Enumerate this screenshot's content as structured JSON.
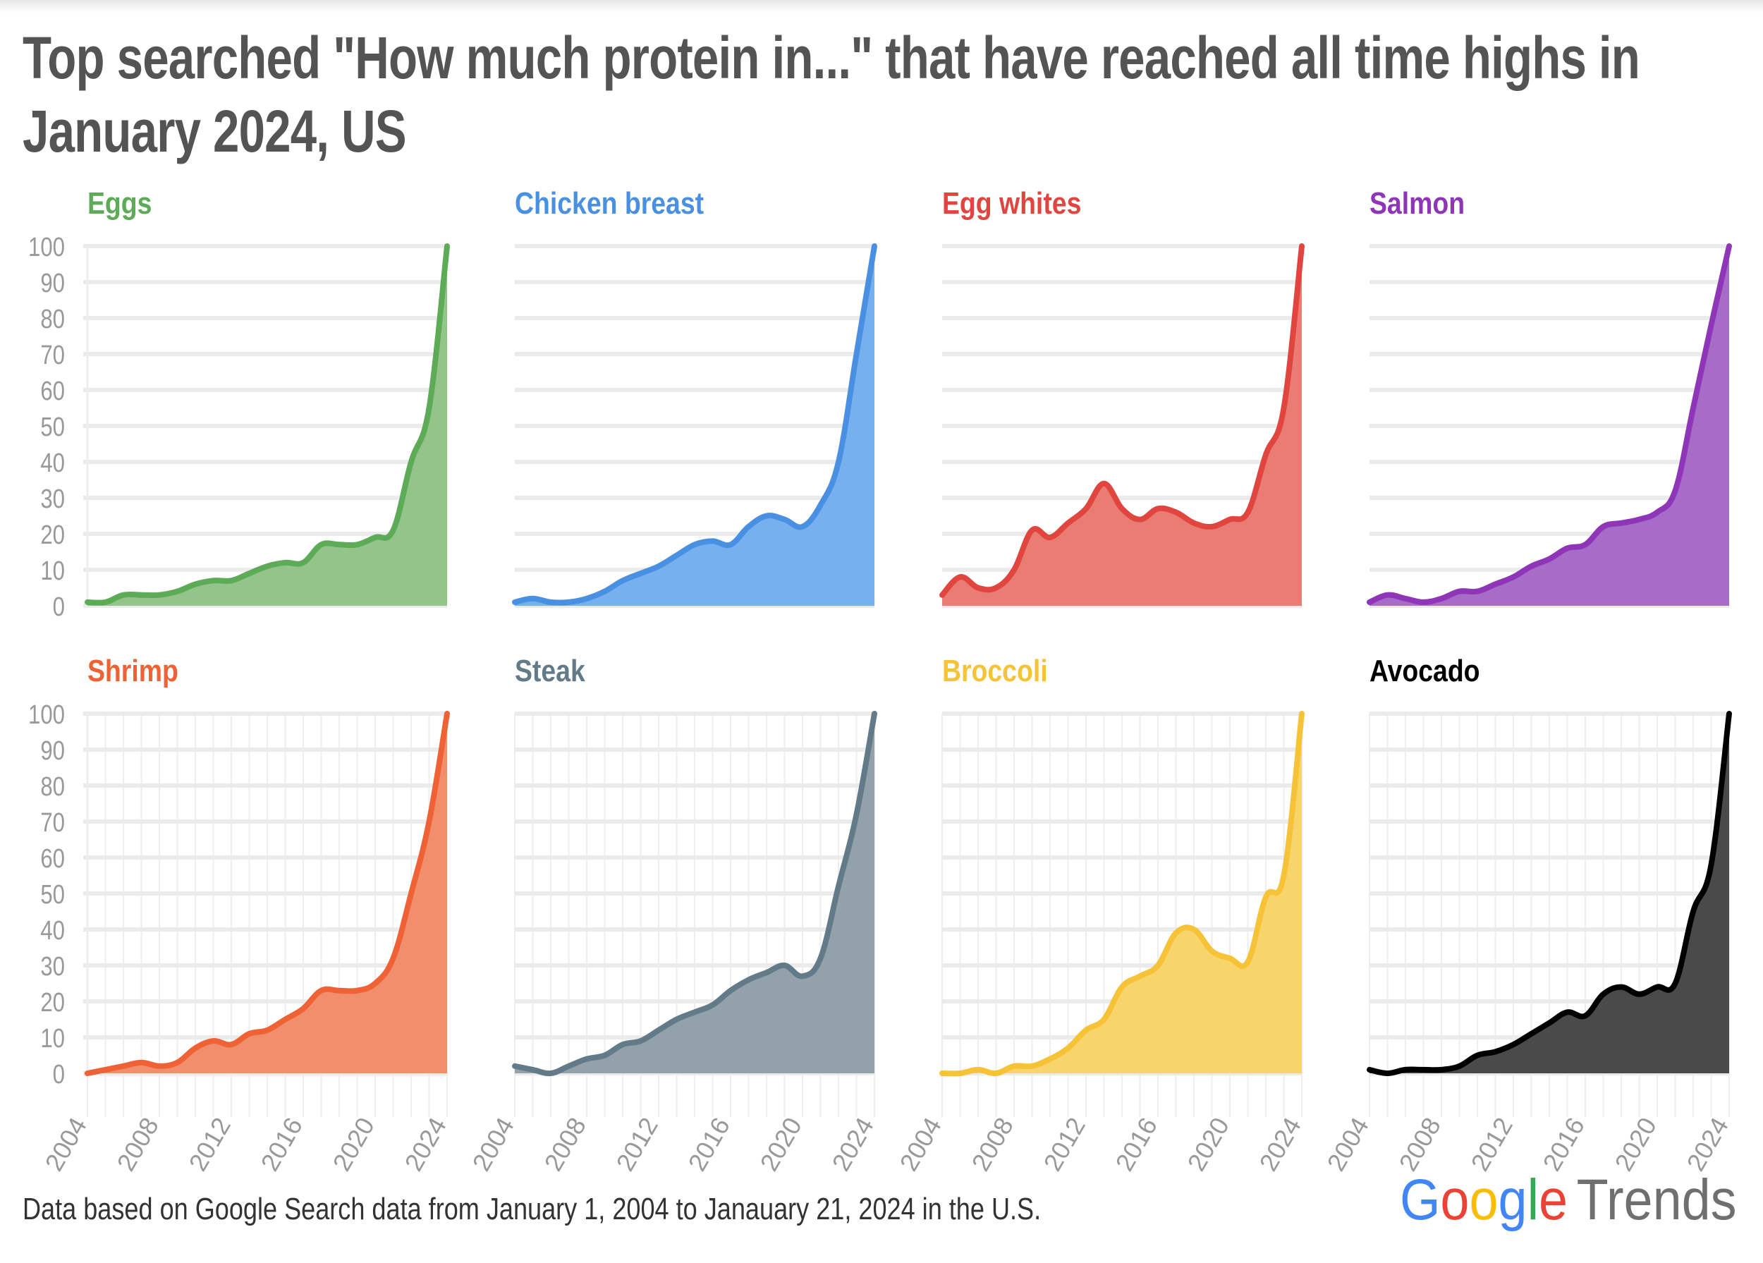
{
  "title": "Top searched \"How much protein in...\" that have reached all time highs in January 2024, US",
  "footer": "Data based on Google Search data from January 1, 2004 to Janauary 21, 2024 in the U.S.",
  "logo": {
    "google": "Google",
    "trends": "Trends"
  },
  "chart_data": [
    {
      "type": "area",
      "title": "Eggs",
      "color": "#5DAA57",
      "fill": "#93C48A",
      "x": [
        2004,
        2005,
        2006,
        2007,
        2008,
        2009,
        2010,
        2011,
        2012,
        2013,
        2014,
        2015,
        2016,
        2017,
        2018,
        2019,
        2020,
        2021,
        2022,
        2023,
        2024
      ],
      "values": [
        1,
        1,
        3,
        3,
        3,
        4,
        6,
        7,
        7,
        9,
        11,
        12,
        12,
        17,
        17,
        17,
        19,
        21,
        40,
        55,
        100
      ],
      "ylim": [
        0,
        100
      ],
      "yticks": [
        0,
        10,
        20,
        30,
        40,
        50,
        60,
        70,
        80,
        90,
        100
      ],
      "xticks": [
        "2004",
        "2008",
        "2012",
        "2016",
        "2020",
        "2024"
      ],
      "grid": true
    },
    {
      "type": "area",
      "title": "Chicken breast",
      "color": "#4A90E2",
      "fill": "#76B0EE",
      "x": [
        2004,
        2005,
        2006,
        2007,
        2008,
        2009,
        2010,
        2011,
        2012,
        2013,
        2014,
        2015,
        2016,
        2017,
        2018,
        2019,
        2020,
        2021,
        2022,
        2023,
        2024
      ],
      "values": [
        1,
        2,
        1,
        1,
        2,
        4,
        7,
        9,
        11,
        14,
        17,
        18,
        17,
        22,
        25,
        24,
        22,
        28,
        40,
        70,
        100
      ],
      "ylim": [
        0,
        100
      ],
      "grid": true
    },
    {
      "type": "area",
      "title": "Egg whites",
      "color": "#E0463F",
      "fill": "#E97C73",
      "x": [
        2004,
        2005,
        2006,
        2007,
        2008,
        2009,
        2010,
        2011,
        2012,
        2013,
        2014,
        2015,
        2016,
        2017,
        2018,
        2019,
        2020,
        2021,
        2022,
        2023,
        2024
      ],
      "values": [
        3,
        8,
        5,
        5,
        10,
        21,
        19,
        23,
        27,
        34,
        27,
        24,
        27,
        26,
        23,
        22,
        24,
        26,
        42,
        55,
        100
      ],
      "ylim": [
        0,
        100
      ],
      "grid": true
    },
    {
      "type": "area",
      "title": "Salmon",
      "color": "#8E35B8",
      "fill": "#A76BC8",
      "x": [
        2004,
        2005,
        2006,
        2007,
        2008,
        2009,
        2010,
        2011,
        2012,
        2013,
        2014,
        2015,
        2016,
        2017,
        2018,
        2019,
        2020,
        2021,
        2022,
        2023,
        2024
      ],
      "values": [
        1,
        3,
        2,
        1,
        2,
        4,
        4,
        6,
        8,
        11,
        13,
        16,
        17,
        22,
        23,
        24,
        26,
        32,
        55,
        78,
        100
      ],
      "ylim": [
        0,
        100
      ],
      "grid": true
    },
    {
      "type": "area",
      "title": "Shrimp",
      "color": "#EE6235",
      "fill": "#F18E6C",
      "x": [
        2004,
        2005,
        2006,
        2007,
        2008,
        2009,
        2010,
        2011,
        2012,
        2013,
        2014,
        2015,
        2016,
        2017,
        2018,
        2019,
        2020,
        2021,
        2022,
        2023,
        2024
      ],
      "values": [
        0,
        1,
        2,
        3,
        2,
        3,
        7,
        9,
        8,
        11,
        12,
        15,
        18,
        23,
        23,
        23,
        25,
        32,
        50,
        70,
        100
      ],
      "ylim": [
        0,
        100
      ],
      "yticks": [
        0,
        10,
        20,
        30,
        40,
        50,
        60,
        70,
        80,
        90,
        100
      ],
      "xticks": [
        "2004",
        "2008",
        "2012",
        "2016",
        "2020",
        "2024"
      ],
      "grid": true
    },
    {
      "type": "area",
      "title": "Steak",
      "color": "#637B88",
      "fill": "#93A2AA",
      "x": [
        2004,
        2005,
        2006,
        2007,
        2008,
        2009,
        2010,
        2011,
        2012,
        2013,
        2014,
        2015,
        2016,
        2017,
        2018,
        2019,
        2020,
        2021,
        2022,
        2023,
        2024
      ],
      "values": [
        2,
        1,
        0,
        2,
        4,
        5,
        8,
        9,
        12,
        15,
        17,
        19,
        23,
        26,
        28,
        30,
        27,
        32,
        52,
        72,
        100
      ],
      "ylim": [
        0,
        100
      ],
      "xticks": [
        "2004",
        "2008",
        "2012",
        "2016",
        "2020",
        "2024"
      ],
      "grid": true
    },
    {
      "type": "area",
      "title": "Broccoli",
      "color": "#F6C338",
      "fill": "#F8D56B",
      "x": [
        2004,
        2005,
        2006,
        2007,
        2008,
        2009,
        2010,
        2011,
        2012,
        2013,
        2014,
        2015,
        2016,
        2017,
        2018,
        2019,
        2020,
        2021,
        2022,
        2023,
        2024
      ],
      "values": [
        0,
        0,
        1,
        0,
        2,
        2,
        4,
        7,
        12,
        15,
        24,
        27,
        30,
        39,
        40,
        34,
        32,
        31,
        49,
        55,
        100
      ],
      "ylim": [
        0,
        100
      ],
      "xticks": [
        "2004",
        "2008",
        "2012",
        "2016",
        "2020",
        "2024"
      ],
      "grid": true
    },
    {
      "type": "area",
      "title": "Avocado",
      "color": "#000000",
      "fill": "#4A4A4A",
      "x": [
        2004,
        2005,
        2006,
        2007,
        2008,
        2009,
        2010,
        2011,
        2012,
        2013,
        2014,
        2015,
        2016,
        2017,
        2018,
        2019,
        2020,
        2021,
        2022,
        2023,
        2024
      ],
      "values": [
        1,
        0,
        1,
        1,
        1,
        2,
        5,
        6,
        8,
        11,
        14,
        17,
        16,
        22,
        24,
        22,
        24,
        25,
        45,
        58,
        100
      ],
      "ylim": [
        0,
        100
      ],
      "xticks": [
        "2004",
        "2008",
        "2012",
        "2016",
        "2020",
        "2024"
      ],
      "grid": true
    }
  ]
}
